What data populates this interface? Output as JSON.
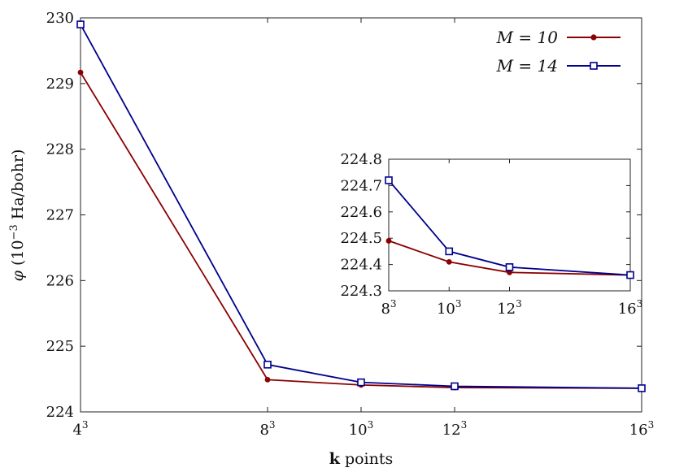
{
  "chart_data": [
    {
      "type": "line",
      "xlabel_bold": "k",
      "xlabel_rest": "points",
      "ylabel_sym": "φ",
      "ylabel_rest": "(10",
      "ylabel_exp": "−3",
      "ylabel_unit": "Ha/bohr)",
      "x": [
        4,
        8,
        10,
        12,
        16
      ],
      "xtick_base": [
        "4",
        "8",
        "10",
        "12",
        "16"
      ],
      "xtick_exp": "3",
      "ylim": [
        224,
        230
      ],
      "yticks": [
        224,
        225,
        226,
        227,
        228,
        229,
        230
      ],
      "legend_position": "top-right",
      "series": [
        {
          "name": "M = 10",
          "color": "#8b0000",
          "marker": "circle",
          "values": [
            229.17,
            224.49,
            224.41,
            224.37,
            224.36
          ]
        },
        {
          "name": "M = 14",
          "color": "#00008b",
          "marker": "square",
          "values": [
            229.9,
            224.72,
            224.45,
            224.39,
            224.36
          ]
        }
      ]
    },
    {
      "type": "line",
      "x": [
        8,
        10,
        12,
        16
      ],
      "xtick_base": [
        "8",
        "10",
        "12",
        "16"
      ],
      "xtick_exp": "3",
      "ylim": [
        224.3,
        224.8
      ],
      "yticks": [
        "224.3",
        "224.4",
        "224.5",
        "224.6",
        "224.7",
        "224.8"
      ],
      "series": [
        {
          "name": "M = 10",
          "color": "#8b0000",
          "marker": "circle",
          "values": [
            224.49,
            224.41,
            224.37,
            224.36
          ]
        },
        {
          "name": "M = 14",
          "color": "#00008b",
          "marker": "square",
          "values": [
            224.72,
            224.45,
            224.39,
            224.36
          ]
        }
      ]
    }
  ]
}
